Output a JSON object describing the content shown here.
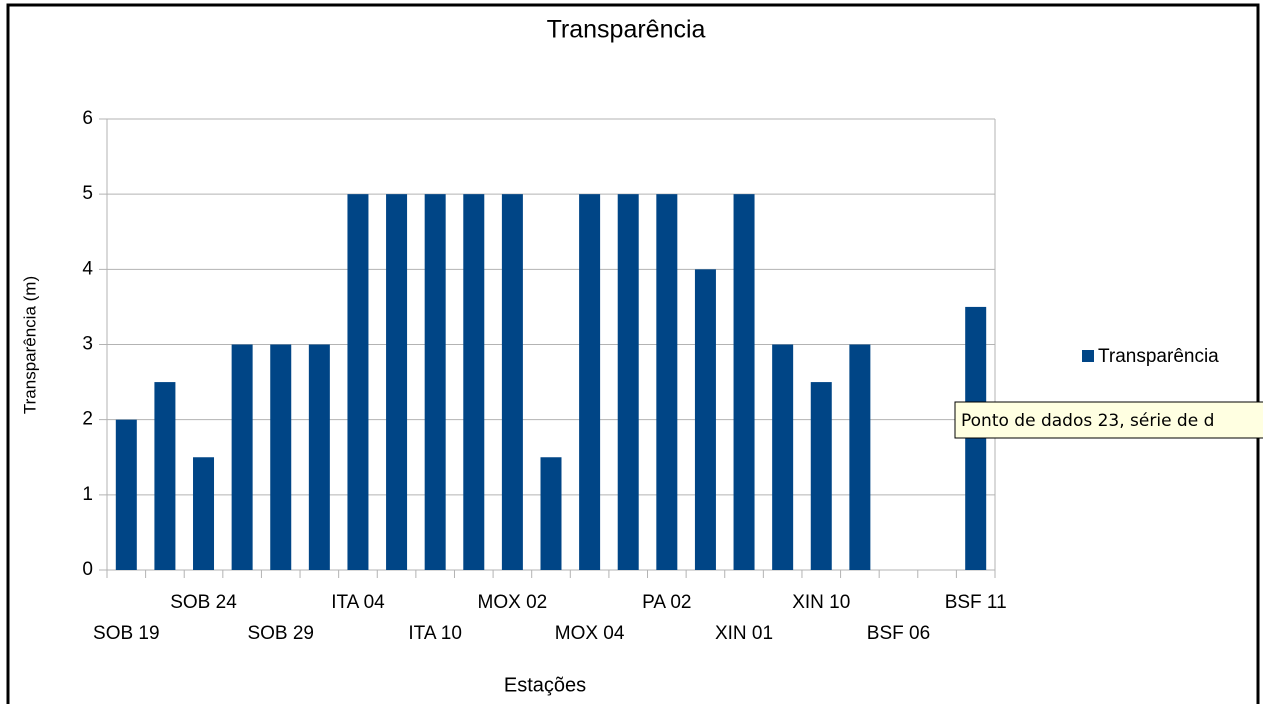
{
  "chart_data": {
    "type": "bar",
    "title": "Transparência",
    "x_label": "Estações",
    "y_label": "Transparência (m)",
    "categories": [
      "SOB 19",
      null,
      "SOB 24",
      null,
      "SOB 29",
      null,
      "ITA 04",
      null,
      "ITA 10",
      null,
      "MOX 02",
      null,
      "MOX 04",
      null,
      "PA 02",
      null,
      "XIN 01",
      null,
      "XIN 10",
      null,
      "BSF 06",
      null,
      "BSF 11"
    ],
    "series": [
      {
        "name": "Transparência",
        "color": "#004586",
        "values": [
          2,
          2.5,
          1.5,
          3,
          3,
          3,
          5,
          5,
          5,
          5,
          5,
          1.5,
          5,
          5,
          5,
          4,
          5,
          3,
          2.5,
          3,
          null,
          null,
          3.5
        ]
      }
    ],
    "ylim": [
      0,
      6
    ],
    "yticks": [
      0,
      1,
      2,
      3,
      4,
      5,
      6
    ],
    "grid": true,
    "legend": "right",
    "tooltip": "Ponto de dados 23, série de d"
  }
}
